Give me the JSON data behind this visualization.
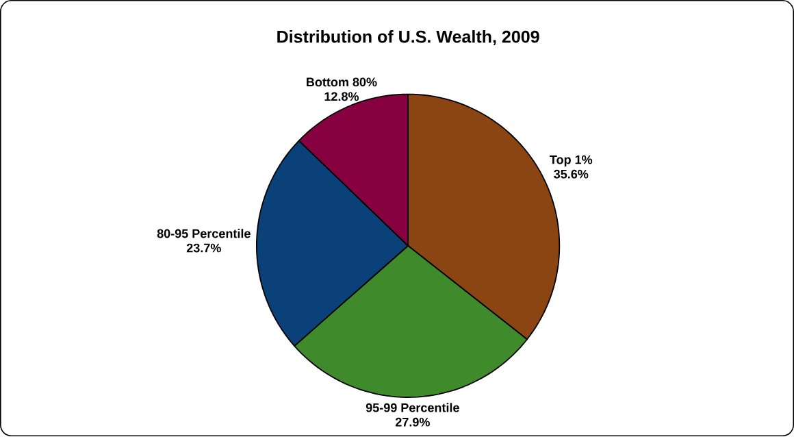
{
  "chart_data": {
    "type": "pie",
    "title": "Distribution of U.S. Wealth, 2009",
    "categories": [
      "Top 1%",
      "95-99 Percentile",
      "80-95 Percentile",
      "Bottom 80%"
    ],
    "values": [
      35.6,
      27.9,
      23.7,
      12.8
    ],
    "value_labels": [
      "35.6%",
      "27.9%",
      "23.7%",
      "12.8%"
    ],
    "colors": [
      "#8b4513",
      "#3f8b2b",
      "#0a4179",
      "#87003f"
    ]
  }
}
